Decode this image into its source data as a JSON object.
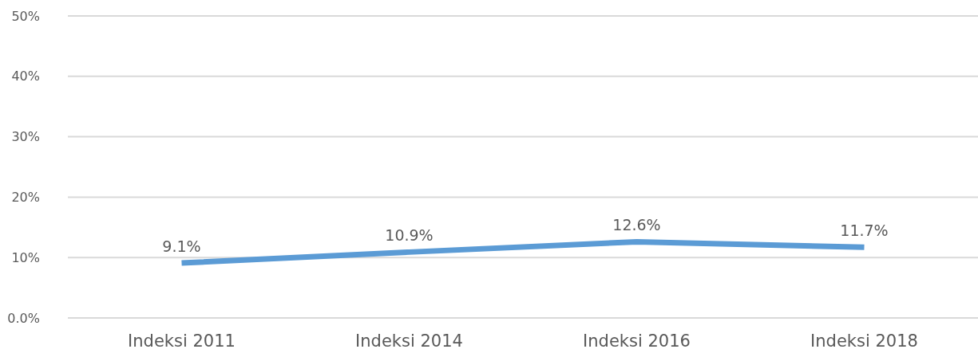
{
  "chart_data": {
    "type": "line",
    "categories": [
      "Indeksi 2011",
      "Indeksi 2014",
      "Indeksi 2016",
      "Indeksi 2018"
    ],
    "series": [
      {
        "color": "#5b9bd5",
        "values": [
          9.1,
          10.9,
          12.6,
          11.7
        ],
        "value_labels": [
          "9.1%",
          "10.9%",
          "12.6%",
          "11.7%"
        ]
      }
    ],
    "ylim": [
      0,
      50
    ],
    "yticks": [
      {
        "value": 0,
        "label": "0.0%"
      },
      {
        "value": 10,
        "label": "10%"
      },
      {
        "value": 20,
        "label": "20%"
      },
      {
        "value": 30,
        "label": "30%"
      },
      {
        "value": 40,
        "label": "40%"
      },
      {
        "value": 50,
        "label": "50%"
      }
    ],
    "grid": "y",
    "marker": "none",
    "line_style": "solid"
  }
}
